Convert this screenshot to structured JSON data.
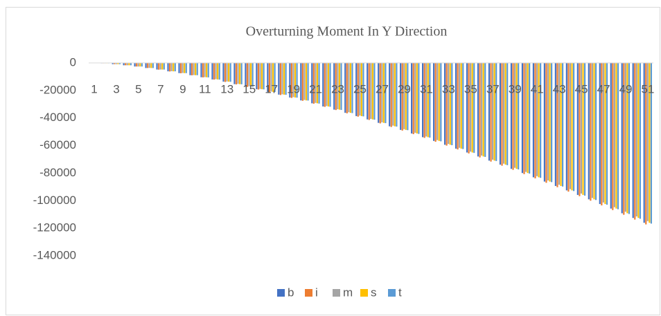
{
  "chart_data": {
    "type": "bar",
    "title": "Overturning Moment In Y Direction",
    "categories": [
      "1",
      null,
      "3",
      null,
      "5",
      null,
      "7",
      null,
      "9",
      null,
      "11",
      null,
      "13",
      null,
      "15",
      null,
      "17",
      null,
      "19",
      null,
      "21",
      null,
      "23",
      null,
      "25",
      null,
      "27",
      null,
      "29",
      null,
      "31",
      null,
      "33",
      null,
      "35",
      null,
      "37",
      null,
      "39",
      null,
      "41",
      null,
      "43",
      null,
      "45",
      null,
      "47",
      null,
      "49",
      null,
      "51"
    ],
    "series": [
      {
        "name": "b",
        "color": "#4472c4",
        "values": [
          0,
          -300,
          -900,
          -1700,
          -2600,
          -3700,
          -4800,
          -6100,
          -7400,
          -8900,
          -10400,
          -12000,
          -13600,
          -15400,
          -17200,
          -19100,
          -21000,
          -23000,
          -25100,
          -27200,
          -29300,
          -31600,
          -33900,
          -36200,
          -38600,
          -41000,
          -43500,
          -46000,
          -48600,
          -51200,
          -53900,
          -56600,
          -59400,
          -62200,
          -65000,
          -67900,
          -70900,
          -73800,
          -76900,
          -79900,
          -83000,
          -86100,
          -89300,
          -92500,
          -95800,
          -99000,
          -102400,
          -105700,
          -109100,
          -112500,
          -116000
        ]
      },
      {
        "name": "i",
        "color": "#ed7d31",
        "values": [
          0,
          -300,
          -900,
          -1700,
          -2600,
          -3700,
          -4900,
          -6200,
          -7500,
          -9000,
          -10500,
          -12100,
          -13800,
          -15600,
          -17400,
          -19300,
          -21200,
          -23300,
          -25400,
          -27500,
          -29600,
          -31900,
          -34200,
          -36600,
          -39000,
          -41400,
          -43900,
          -46500,
          -49100,
          -51700,
          -54400,
          -57200,
          -60000,
          -62800,
          -65700,
          -68600,
          -71600,
          -74600,
          -77600,
          -80700,
          -83800,
          -87000,
          -90200,
          -93400,
          -96700,
          -100000,
          -103400,
          -106800,
          -110200,
          -113700,
          -117200
        ]
      },
      {
        "name": "m",
        "color": "#a5a5a5",
        "values": [
          0,
          -300,
          -900,
          -1700,
          -2600,
          -3600,
          -4800,
          -6000,
          -7300,
          -8800,
          -10300,
          -11800,
          -13500,
          -15200,
          -17000,
          -18900,
          -20800,
          -22800,
          -24800,
          -26900,
          -29000,
          -31300,
          -33600,
          -35800,
          -38200,
          -40600,
          -43100,
          -45500,
          -48100,
          -50700,
          -53400,
          -56000,
          -58800,
          -61600,
          -64400,
          -67200,
          -70200,
          -73100,
          -76100,
          -79100,
          -82200,
          -85300,
          -88400,
          -91600,
          -94800,
          -98000,
          -101300,
          -104700,
          -108000,
          -111400,
          -114800
        ]
      },
      {
        "name": "s",
        "color": "#ffc000",
        "values": [
          0,
          -300,
          -900,
          -1700,
          -2600,
          -3700,
          -4800,
          -6100,
          -7400,
          -8900,
          -10400,
          -12000,
          -13600,
          -15400,
          -17200,
          -19100,
          -21000,
          -23000,
          -25100,
          -27200,
          -29300,
          -31600,
          -33900,
          -36200,
          -38600,
          -41000,
          -43500,
          -46000,
          -48600,
          -51200,
          -53900,
          -56600,
          -59400,
          -62200,
          -65000,
          -67900,
          -70900,
          -73800,
          -76900,
          -79900,
          -83000,
          -86100,
          -89300,
          -92500,
          -95800,
          -99000,
          -102400,
          -105700,
          -109100,
          -112500,
          -116000
        ]
      },
      {
        "name": "t",
        "color": "#5b9bd5",
        "values": [
          0,
          -300,
          -900,
          -1700,
          -2600,
          -3700,
          -4800,
          -6100,
          -7400,
          -8900,
          -10500,
          -12100,
          -13700,
          -15500,
          -17300,
          -19200,
          -21100,
          -23100,
          -25200,
          -27300,
          -29500,
          -31800,
          -34100,
          -36400,
          -38800,
          -41200,
          -43700,
          -46200,
          -48800,
          -51500,
          -54200,
          -56900,
          -59700,
          -62500,
          -65300,
          -68200,
          -71200,
          -74200,
          -77300,
          -80300,
          -83400,
          -86500,
          -89700,
          -93000,
          -96300,
          -99500,
          -102900,
          -106200,
          -109600,
          -113100,
          -116600
        ]
      }
    ],
    "ylim": [
      -140000,
      0
    ],
    "yticks": [
      0,
      -20000,
      -40000,
      -60000,
      -80000,
      -100000,
      -120000,
      -140000
    ],
    "grid": false,
    "legend": "bottom"
  }
}
